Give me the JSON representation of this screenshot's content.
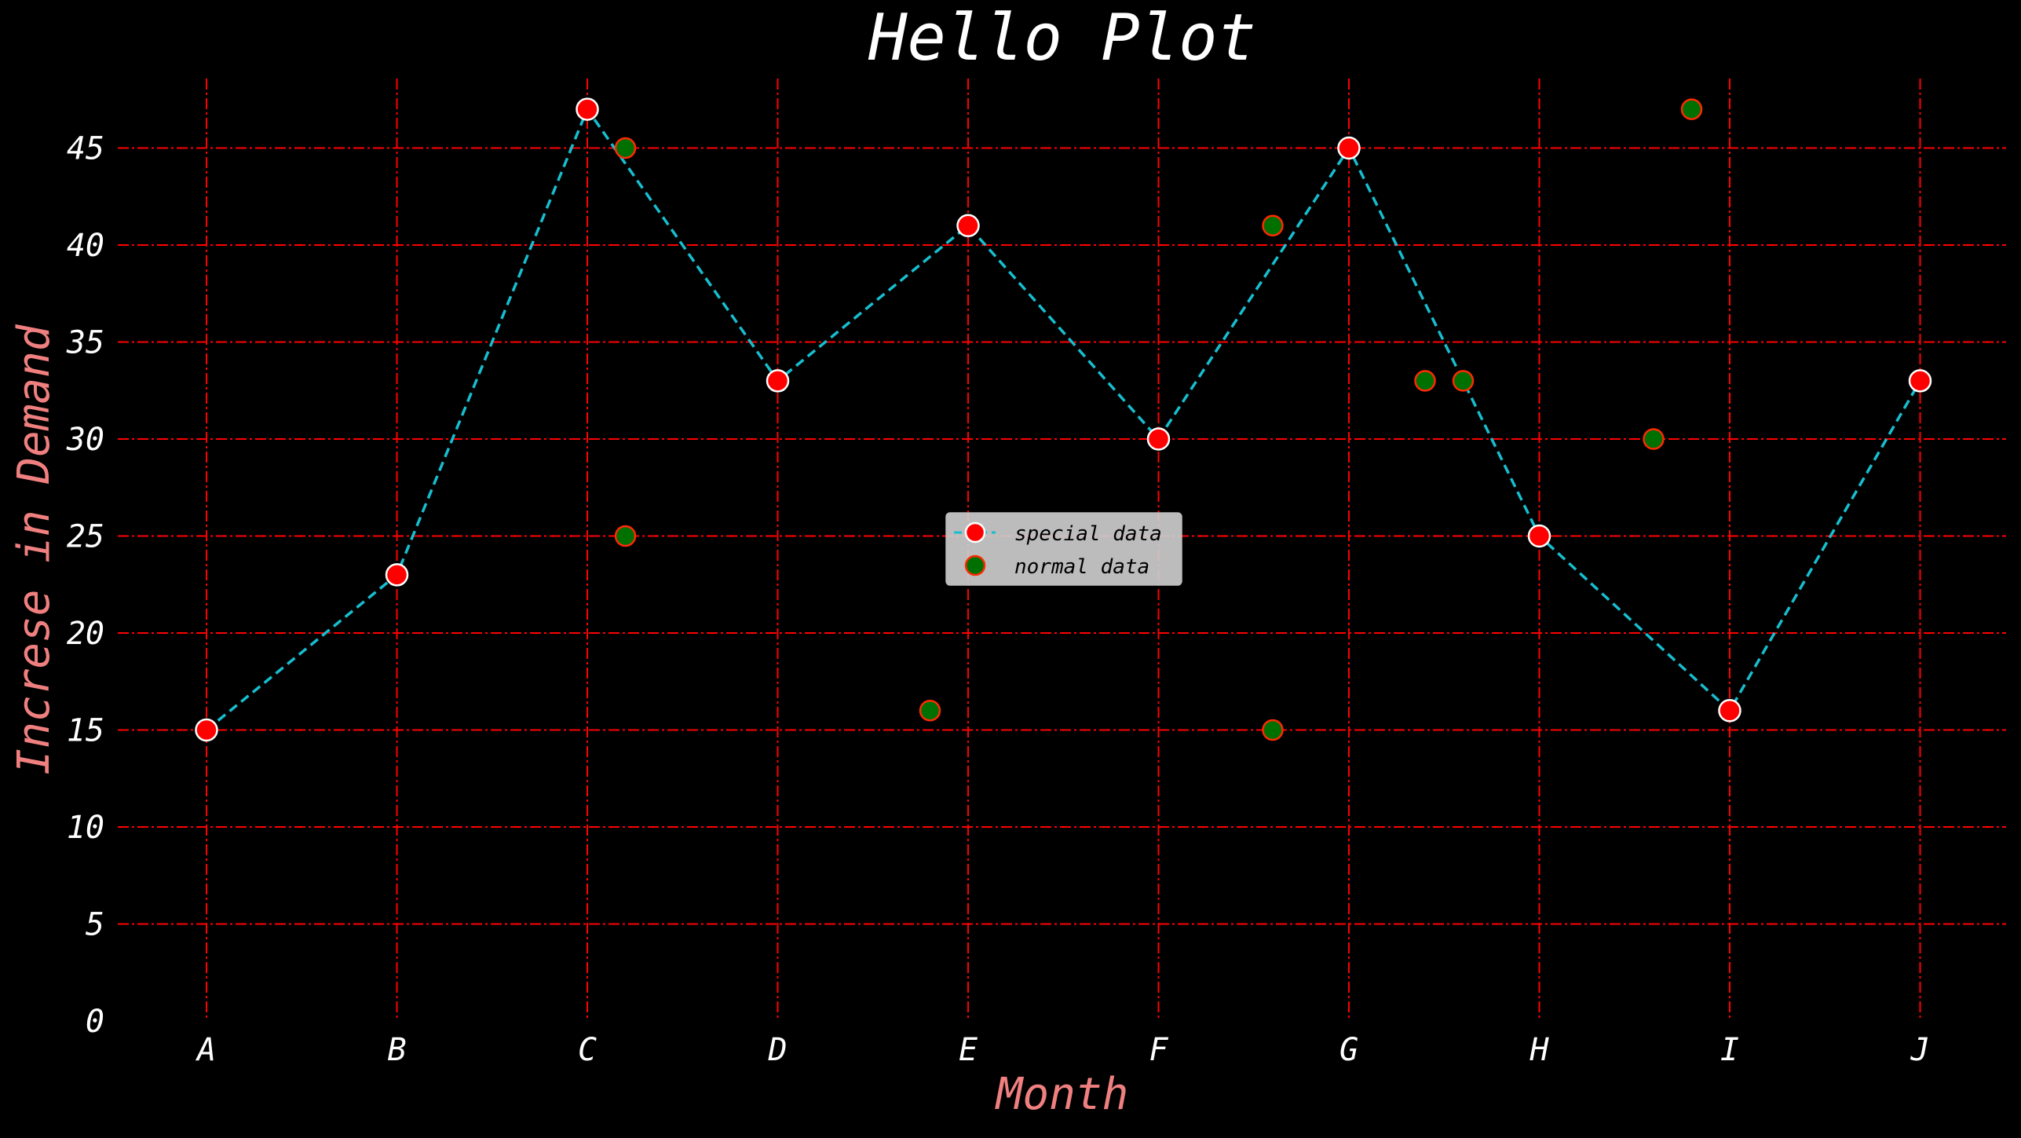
{
  "chart_data": {
    "type": "line",
    "title": "Hello Plot",
    "xlabel": "Month",
    "ylabel": "Increse in Demand",
    "categories": [
      "A",
      "B",
      "C",
      "D",
      "E",
      "F",
      "G",
      "H",
      "I",
      "J"
    ],
    "ylim": [
      0,
      48.5
    ],
    "yticks": [
      0,
      5,
      10,
      15,
      20,
      25,
      30,
      35,
      40,
      45
    ],
    "grid": true,
    "legend_position": "center",
    "series": [
      {
        "name": "special data",
        "type": "line",
        "x": [
          0,
          1,
          2,
          3,
          4,
          5,
          6,
          7,
          8,
          9
        ],
        "values": [
          15,
          23,
          47,
          33,
          41,
          30,
          45,
          25,
          16,
          33
        ]
      },
      {
        "name": "normal data",
        "type": "scatter",
        "x": [
          2.2,
          2.2,
          3.8,
          5.6,
          5.6,
          6.4,
          6.6,
          7.6,
          7.8
        ],
        "values": [
          45,
          25,
          16,
          41,
          15,
          33,
          33,
          30,
          47
        ]
      }
    ],
    "colors": {
      "background": "#000000",
      "grid": "#ff0000",
      "line": "#17becf",
      "special_marker": "#ff0000",
      "special_marker_edge": "#ffffff",
      "normal_marker": "#007000",
      "normal_marker_edge": "#ff2a00",
      "title": "#ffffff",
      "tick_labels": "#ffffff",
      "axis_labels": "#f08080",
      "legend_bg": "#d0d0d0"
    }
  }
}
